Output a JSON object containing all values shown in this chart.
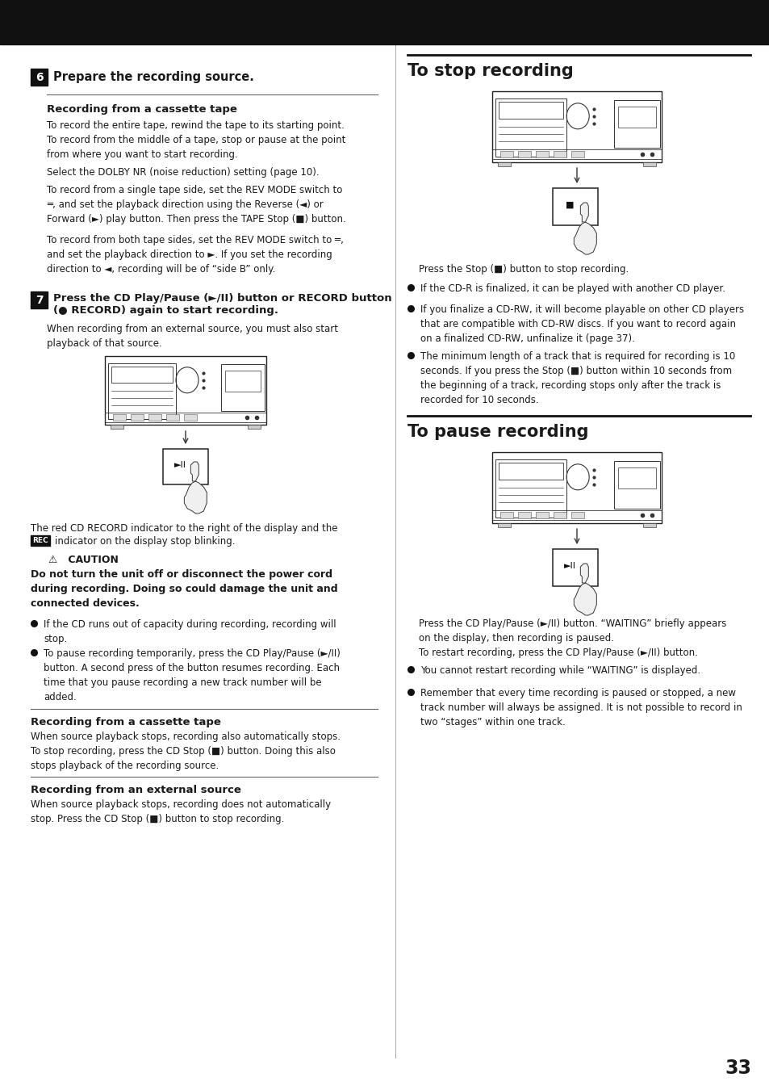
{
  "page_number": "33",
  "bg": "#ffffff",
  "header_color": "#111111",
  "text_color": "#1a1a1a",
  "step_box_color": "#111111",
  "step_text_color": "#ffffff",
  "rec_bg": "#111111",
  "line_color": "#555555",
  "section_line_color": "#222222",
  "step6_num": "6",
  "step6_title": "Prepare the recording source.",
  "subhead1": "Recording from a cassette tape",
  "para1a": "To record the entire tape, rewind the tape to its starting point.\nTo record from the middle of a tape, stop or pause at the point\nfrom where you want to start recording.",
  "para1b": "Select the DOLBY NR (noise reduction) setting (page 10).",
  "para1c": "To record from a single tape side, set the REV MODE switch to\n═, and set the playback direction using the Reverse (◄) or\nForward (►) play button. Then press the TAPE Stop (■) button.",
  "para1d": "To record from both tape sides, set the REV MODE switch to ═,\nand set the playback direction to ►. If you set the recording\ndirection to ◄, recording will be of “side B” only.",
  "step7_num": "7",
  "step7_line1": "Press the CD Play/Pause (►/II) button or RECORD button",
  "step7_line2": "(● RECORD) again to start recording.",
  "para7a": "When recording from an external source, you must also start\nplayback of that source.",
  "rec_text1": "The red CD RECORD indicator to the right of the display and the",
  "rec_text2": "indicator on the display stop blinking.",
  "rec_badge": "REC",
  "caution_head": "⚠   CAUTION",
  "caution_body": "Do not turn the unit off or disconnect the power cord\nduring recording. Doing so could damage the unit and\nconnected devices.",
  "bullet1": "If the CD runs out of capacity during recording, recording will\nstop.",
  "bullet2": "To pause recording temporarily, press the CD Play/Pause (►/II)\nbutton. A second press of the button resumes recording. Each\ntime that you pause recording a new track number will be\nadded.",
  "subhead2": "Recording from a cassette tape",
  "para2": "When source playback stops, recording also automatically stops.\nTo stop recording, press the CD Stop (■) button. Doing this also\nstops playback of the recording source.",
  "subhead3": "Recording from an external source",
  "para3": "When source playback stops, recording does not automatically\nstop. Press the CD Stop (■) button to stop recording.",
  "stop_title": "To stop recording",
  "stop_caption": "Press the Stop (■) button to stop recording.",
  "stop_b1": "If the CD-R is finalized, it can be played with another CD player.",
  "stop_b2": "If you finalize a CD-RW, it will become playable on other CD players\nthat are compatible with CD-RW discs. If you want to record again\non a finalized CD-RW, unfinalize it (page 37).",
  "stop_b3": "The minimum length of a track that is required for recording is 10\nseconds. If you press the Stop (■) button within 10 seconds from\nthe beginning of a track, recording stops only after the track is\nrecorded for 10 seconds.",
  "pause_title": "To pause recording",
  "pause_caption": "Press the CD Play/Pause (►/II) button. “WAITING” briefly appears\non the display, then recording is paused.\nTo restart recording, press the CD Play/Pause (►/II) button.",
  "pause_b1": "You cannot restart recording while “WAITING” is displayed.",
  "pause_b2": "Remember that every time recording is paused or stopped, a new\ntrack number will always be assigned. It is not possible to record in\ntwo “stages” within one track."
}
